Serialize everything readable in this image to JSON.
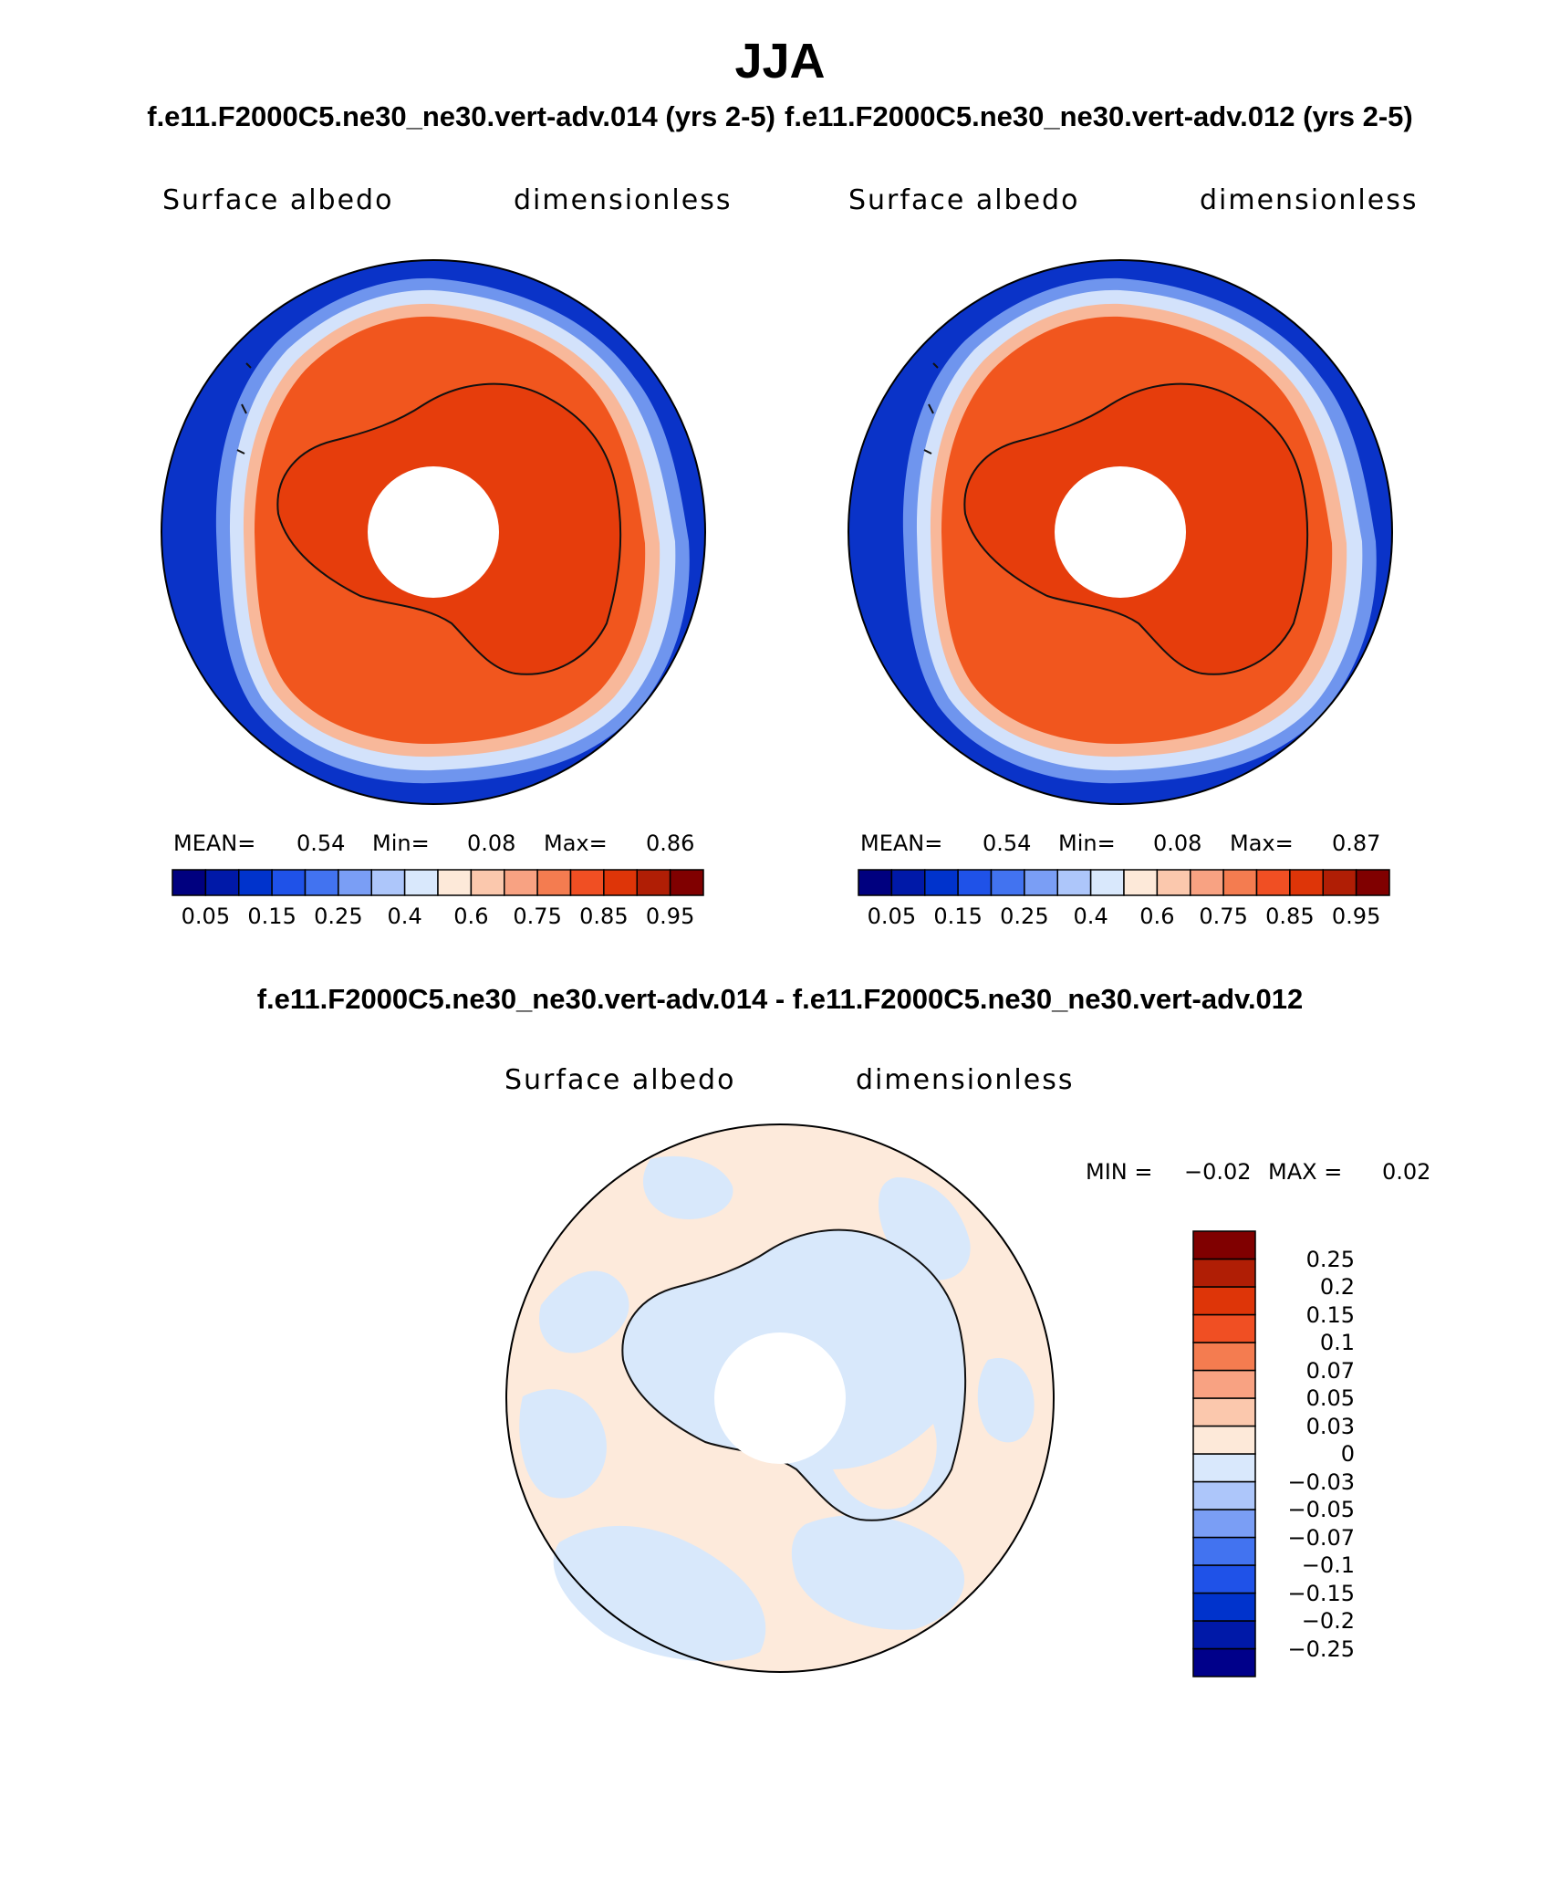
{
  "figure": {
    "season": "JJA",
    "case_test_label": "f.e11.F2000C5.ne30_ne30.vert-adv.014 (yrs 2-5)",
    "case_ctrl_label": "f.e11.F2000C5.ne30_ne30.vert-adv.012 (yrs 2-5)",
    "diff_title": "f.e11.F2000C5.ne30_ne30.vert-adv.014 - f.e11.F2000C5.ne30_ne30.vert-adv.012"
  },
  "panels": {
    "test": {
      "variable": "Surface albedo",
      "units": "dimensionless",
      "mean_label": "MEAN=",
      "mean": "0.54",
      "min_label": "Min=",
      "min": "0.08",
      "max_label": "Max=",
      "max": "0.86"
    },
    "ctrl": {
      "variable": "Surface albedo",
      "units": "dimensionless",
      "mean_label": "MEAN=",
      "mean": "0.54",
      "min_label": "Min=",
      "min": "0.08",
      "max_label": "Max=",
      "max": "0.87"
    },
    "diff": {
      "variable": "Surface albedo",
      "units": "dimensionless",
      "min_label": "MIN =",
      "min": "−0.02",
      "max_label": "MAX =",
      "max": "0.02"
    }
  },
  "colorbars": {
    "abs": {
      "colors": [
        "#00007f",
        "#0019a8",
        "#0033cc",
        "#1f52e8",
        "#4273f0",
        "#7a9ef5",
        "#adc6fa",
        "#d9e8fc",
        "#fde9d9",
        "#fbc8ad",
        "#f8a282",
        "#f47c50",
        "#f04f23",
        "#de3508",
        "#b01e05",
        "#800000"
      ],
      "tick_labels": [
        "0.05",
        "0.15",
        "0.25",
        "0.4",
        "0.6",
        "0.75",
        "0.85",
        "0.95"
      ]
    },
    "diff": {
      "colors": [
        "#00008a",
        "#0019a8",
        "#0033cc",
        "#1f52e8",
        "#4273f0",
        "#7a9ef5",
        "#adc6fa",
        "#d9e8fc",
        "#fde9d9",
        "#fbc8ad",
        "#f8a282",
        "#f47c50",
        "#f04f23",
        "#de3508",
        "#b01e05",
        "#800000"
      ],
      "tick_labels": [
        "−0.25",
        "−0.2",
        "−0.15",
        "−0.1",
        "−0.07",
        "−0.05",
        "−0.03",
        "0",
        "0.03",
        "0.05",
        "0.07",
        "0.1",
        "0.15",
        "0.2",
        "0.25"
      ]
    }
  }
}
